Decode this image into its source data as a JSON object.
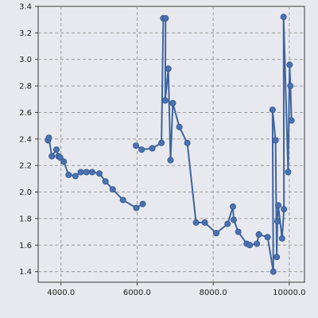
{
  "chart_data": {
    "type": "line",
    "title": "",
    "xlabel": "",
    "ylabel": "",
    "xlim": [
      3400,
      10400
    ],
    "ylim": [
      1.32,
      3.4
    ],
    "grid": true,
    "x_ticks": [
      4000,
      6000,
      8000,
      10000
    ],
    "x_tick_labels": [
      "4000.0",
      "6000.0",
      "8000.0",
      "10000.0"
    ],
    "y_ticks": [
      1.4,
      1.6,
      1.8,
      2.0,
      2.2,
      2.4,
      2.6,
      2.8,
      3.0,
      3.2,
      3.4
    ],
    "y_tick_labels": [
      "1.4",
      "1.6",
      "1.8",
      "2.0",
      "2.2",
      "2.4",
      "2.6",
      "2.8",
      "3.0",
      "3.2",
      "3.4"
    ],
    "series": [
      {
        "line_color": "#3e64a0",
        "marker_color": "#4a72b0",
        "points": [
          [
            3660,
            2.39
          ],
          [
            3680,
            2.41
          ],
          [
            3760,
            2.27
          ],
          [
            3880,
            2.32
          ],
          [
            3930,
            2.27
          ],
          [
            3980,
            2.26
          ],
          [
            4070,
            2.23
          ],
          [
            4200,
            2.13
          ],
          [
            4380,
            2.12
          ],
          [
            4520,
            2.15
          ],
          [
            4670,
            2.15
          ],
          [
            4820,
            2.15
          ],
          [
            5010,
            2.14
          ],
          [
            5170,
            2.08
          ],
          [
            5360,
            2.02
          ],
          [
            5630,
            1.94
          ],
          [
            5980,
            1.88
          ],
          [
            6150,
            1.91
          ]
        ]
      },
      {
        "line_color": "#3e64a0",
        "marker_color": "#4a72b0",
        "points": [
          [
            5970,
            2.35
          ],
          [
            6120,
            2.32
          ],
          [
            6400,
            2.33
          ],
          [
            6640,
            2.37
          ],
          [
            6690,
            3.31
          ],
          [
            6750,
            3.31
          ],
          [
            6740,
            2.69
          ],
          [
            6820,
            2.93
          ],
          [
            6880,
            2.24
          ],
          [
            6940,
            2.67
          ],
          [
            7110,
            2.49
          ],
          [
            7320,
            2.37
          ],
          [
            7550,
            1.77
          ],
          [
            7780,
            1.77
          ],
          [
            8080,
            1.69
          ],
          [
            8380,
            1.76
          ],
          [
            8520,
            1.89
          ],
          [
            8540,
            1.79
          ],
          [
            8660,
            1.7
          ],
          [
            8880,
            1.61
          ],
          [
            8960,
            1.6
          ],
          [
            9150,
            1.61
          ],
          [
            9200,
            1.68
          ],
          [
            9430,
            1.66
          ],
          [
            9580,
            1.4
          ],
          [
            9560,
            2.62
          ],
          [
            9640,
            2.39
          ],
          [
            9670,
            1.51
          ],
          [
            9690,
            1.78
          ],
          [
            9710,
            1.9
          ],
          [
            9810,
            1.65
          ],
          [
            9860,
            1.87
          ],
          [
            9850,
            3.32
          ],
          [
            9970,
            2.15
          ],
          [
            10010,
            2.96
          ],
          [
            10030,
            2.8
          ],
          [
            10060,
            2.54
          ]
        ]
      }
    ]
  }
}
